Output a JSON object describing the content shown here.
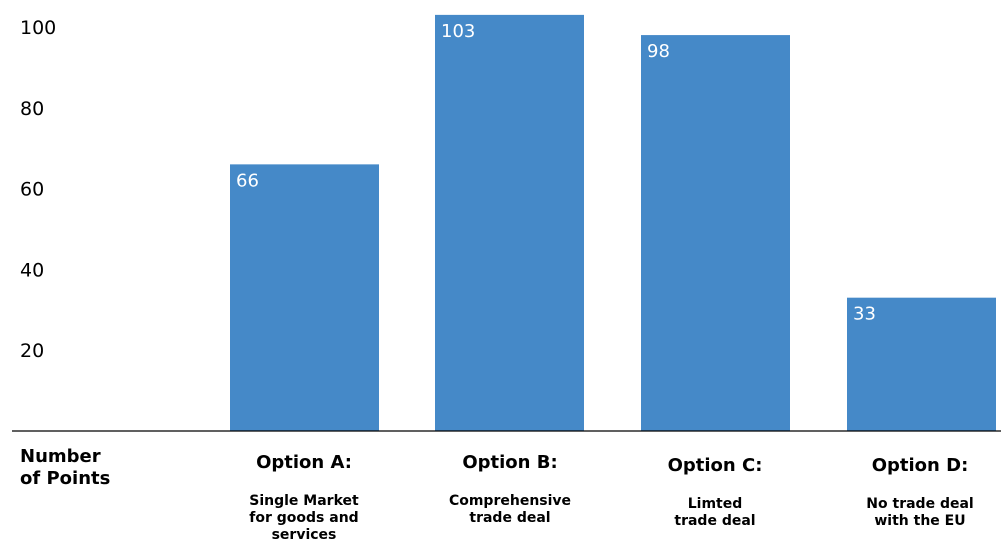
{
  "chart_data": {
    "type": "bar",
    "categories": [
      "Option A:",
      "Option B:",
      "Option C:",
      "Option D:"
    ],
    "category_descriptions": [
      [
        "Single Market",
        "for goods and",
        "services"
      ],
      [
        "Comprehensive",
        "trade deal"
      ],
      [
        "Limted",
        "trade deal"
      ],
      [
        "No trade deal",
        "with the EU"
      ]
    ],
    "values": [
      66,
      103,
      98,
      33
    ],
    "data_labels": [
      "66",
      "103",
      "98",
      "33"
    ],
    "y_ticks": [
      20,
      40,
      60,
      80,
      100
    ],
    "ylabel_lines": [
      "Number",
      "of Points"
    ],
    "title": "",
    "xlabel": "",
    "bar_color": "#4589c8",
    "grid": false,
    "legend": "none"
  }
}
